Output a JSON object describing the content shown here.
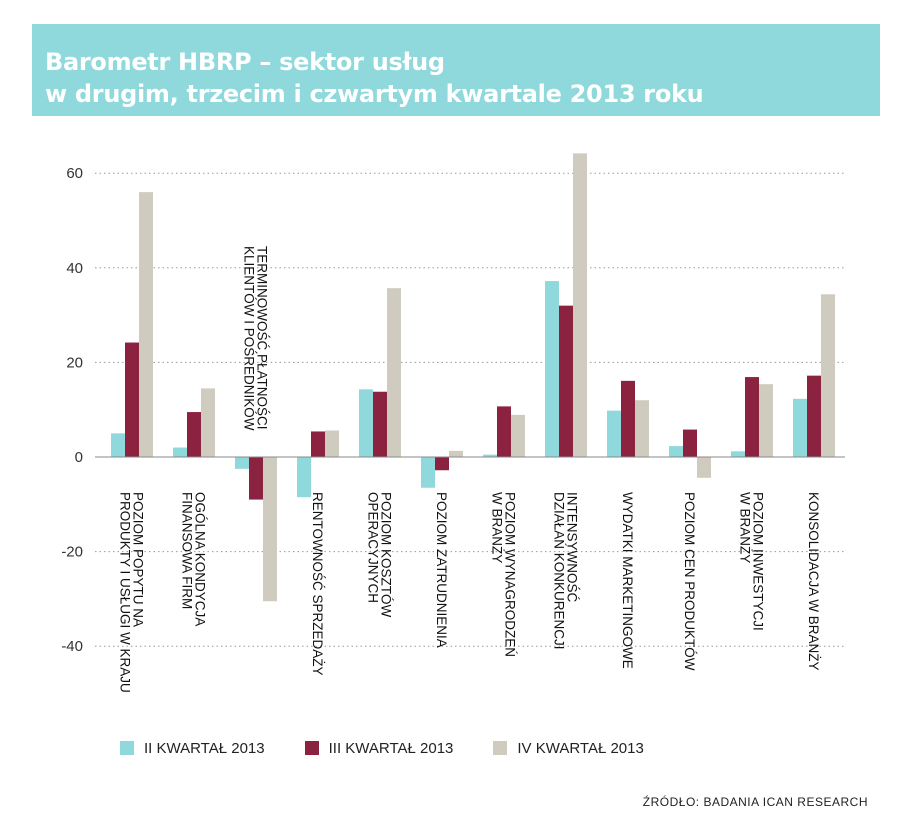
{
  "header": {
    "title_line1": "Barometr HBRP – sektor usług",
    "title_line2": "w drugim, trzecim i czwartym kwartale 2013 roku"
  },
  "chart_data": {
    "type": "bar",
    "ylim": [
      -40,
      65
    ],
    "yticks": [
      60,
      40,
      20,
      0,
      -20,
      -40
    ],
    "grid": true,
    "legend_position": "bottom",
    "categories": [
      [
        "POZIOM POPYTU NA",
        "PRODUKTY I USŁUGI W KRAJU"
      ],
      [
        "OGÓLNA KONDYCJA",
        "FINANSOWA FIRM"
      ],
      [
        "TERMINOWOŚĆ PŁATNOŚCI",
        "KLIENTÓW I POŚREDNIKÓW"
      ],
      [
        "RENTOWNOŚĆ SPRZEDAŻY"
      ],
      [
        "POZIOM KOSZTÓW",
        "OPERACYJNYCH"
      ],
      [
        "POZIOM ZATRUDNIENIA"
      ],
      [
        "POZIOM WYNAGRODZEŃ",
        "W BRANŻY"
      ],
      [
        "INTENSYWNOŚĆ",
        "DZIAŁAŃ KONKURENCJI"
      ],
      [
        "WYDATKI MARKETINGOWE"
      ],
      [
        "POZIOM CEN PRODUKTÓW"
      ],
      [
        "POZIOM INWESTYCJI",
        "W BRANŻY"
      ],
      [
        "KONSOLIDACJA W BRANŻY"
      ]
    ],
    "series": [
      {
        "name": "II KWARTAŁ 2013",
        "color": "#8fd8db",
        "values": [
          5,
          2,
          -2.5,
          -8.5,
          14.3,
          -6.5,
          0.5,
          37.2,
          9.8,
          2.3,
          1.2,
          12.3
        ]
      },
      {
        "name": "III KWARTAŁ 2013",
        "color": "#8b2240",
        "values": [
          24.2,
          9.5,
          -9,
          5.4,
          13.8,
          -2.8,
          10.7,
          32,
          16.1,
          5.8,
          16.9,
          17.2
        ]
      },
      {
        "name": "IV KWARTAŁ 2013",
        "color": "#cfccbf",
        "values": [
          56,
          14.5,
          -30.5,
          5.6,
          35.7,
          1.3,
          8.9,
          64.2,
          12,
          -4.4,
          15.4,
          34.4
        ]
      }
    ]
  },
  "source": "ŹRÓDŁO: BADANIA ICAN RESEARCH"
}
